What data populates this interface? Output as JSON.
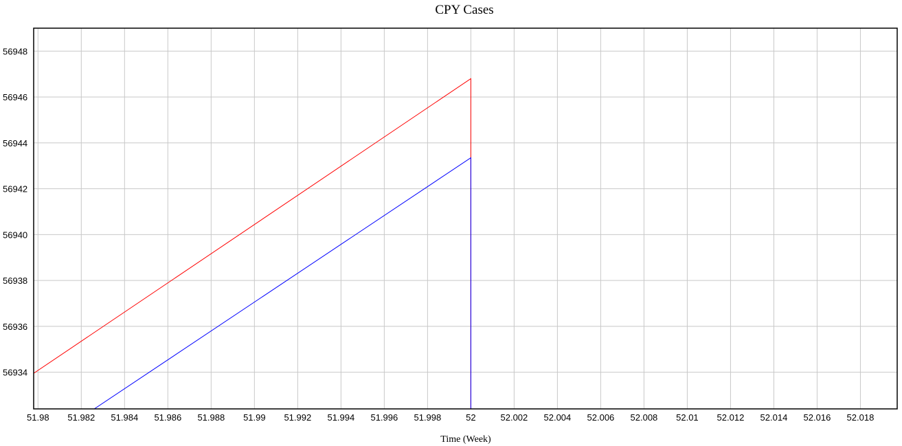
{
  "chart_data": {
    "type": "line",
    "title": "CPY Cases",
    "xlabel": "Time (Week)",
    "ylabel": "",
    "xlim": [
      51.9798,
      52.0197
    ],
    "ylim": [
      56932.4,
      56949
    ],
    "grid": true,
    "x_ticks": [
      51.98,
      51.982,
      51.984,
      51.986,
      51.988,
      51.99,
      51.992,
      51.994,
      51.996,
      51.998,
      52,
      52.002,
      52.004,
      52.006,
      52.008,
      52.01,
      52.012,
      52.014,
      52.016,
      52.018
    ],
    "x_tick_labels": [
      "51.98",
      "51.982",
      "51.984",
      "51.986",
      "51.988",
      "51.99",
      "51.992",
      "51.994",
      "51.996",
      "51.998",
      "52",
      "52.002",
      "52.004",
      "52.006",
      "52.008",
      "52.01",
      "52.012",
      "52.014",
      "52.016",
      "52.018"
    ],
    "y_ticks": [
      56934,
      56936,
      56938,
      56940,
      56942,
      56944,
      56946,
      56948
    ],
    "y_tick_labels": [
      "56934",
      "56936",
      "56938",
      "56940",
      "56942",
      "56944",
      "56946",
      "56948"
    ],
    "series": [
      {
        "color": "#ff0000",
        "x": [
          51.9798,
          52.0,
          52.0
        ],
        "y": [
          56933.95,
          56946.8,
          56932.4
        ]
      },
      {
        "color": "#0000ff",
        "x": [
          51.9826,
          52.0,
          52.0
        ],
        "y": [
          56932.4,
          56943.35,
          56932.4
        ]
      }
    ]
  }
}
